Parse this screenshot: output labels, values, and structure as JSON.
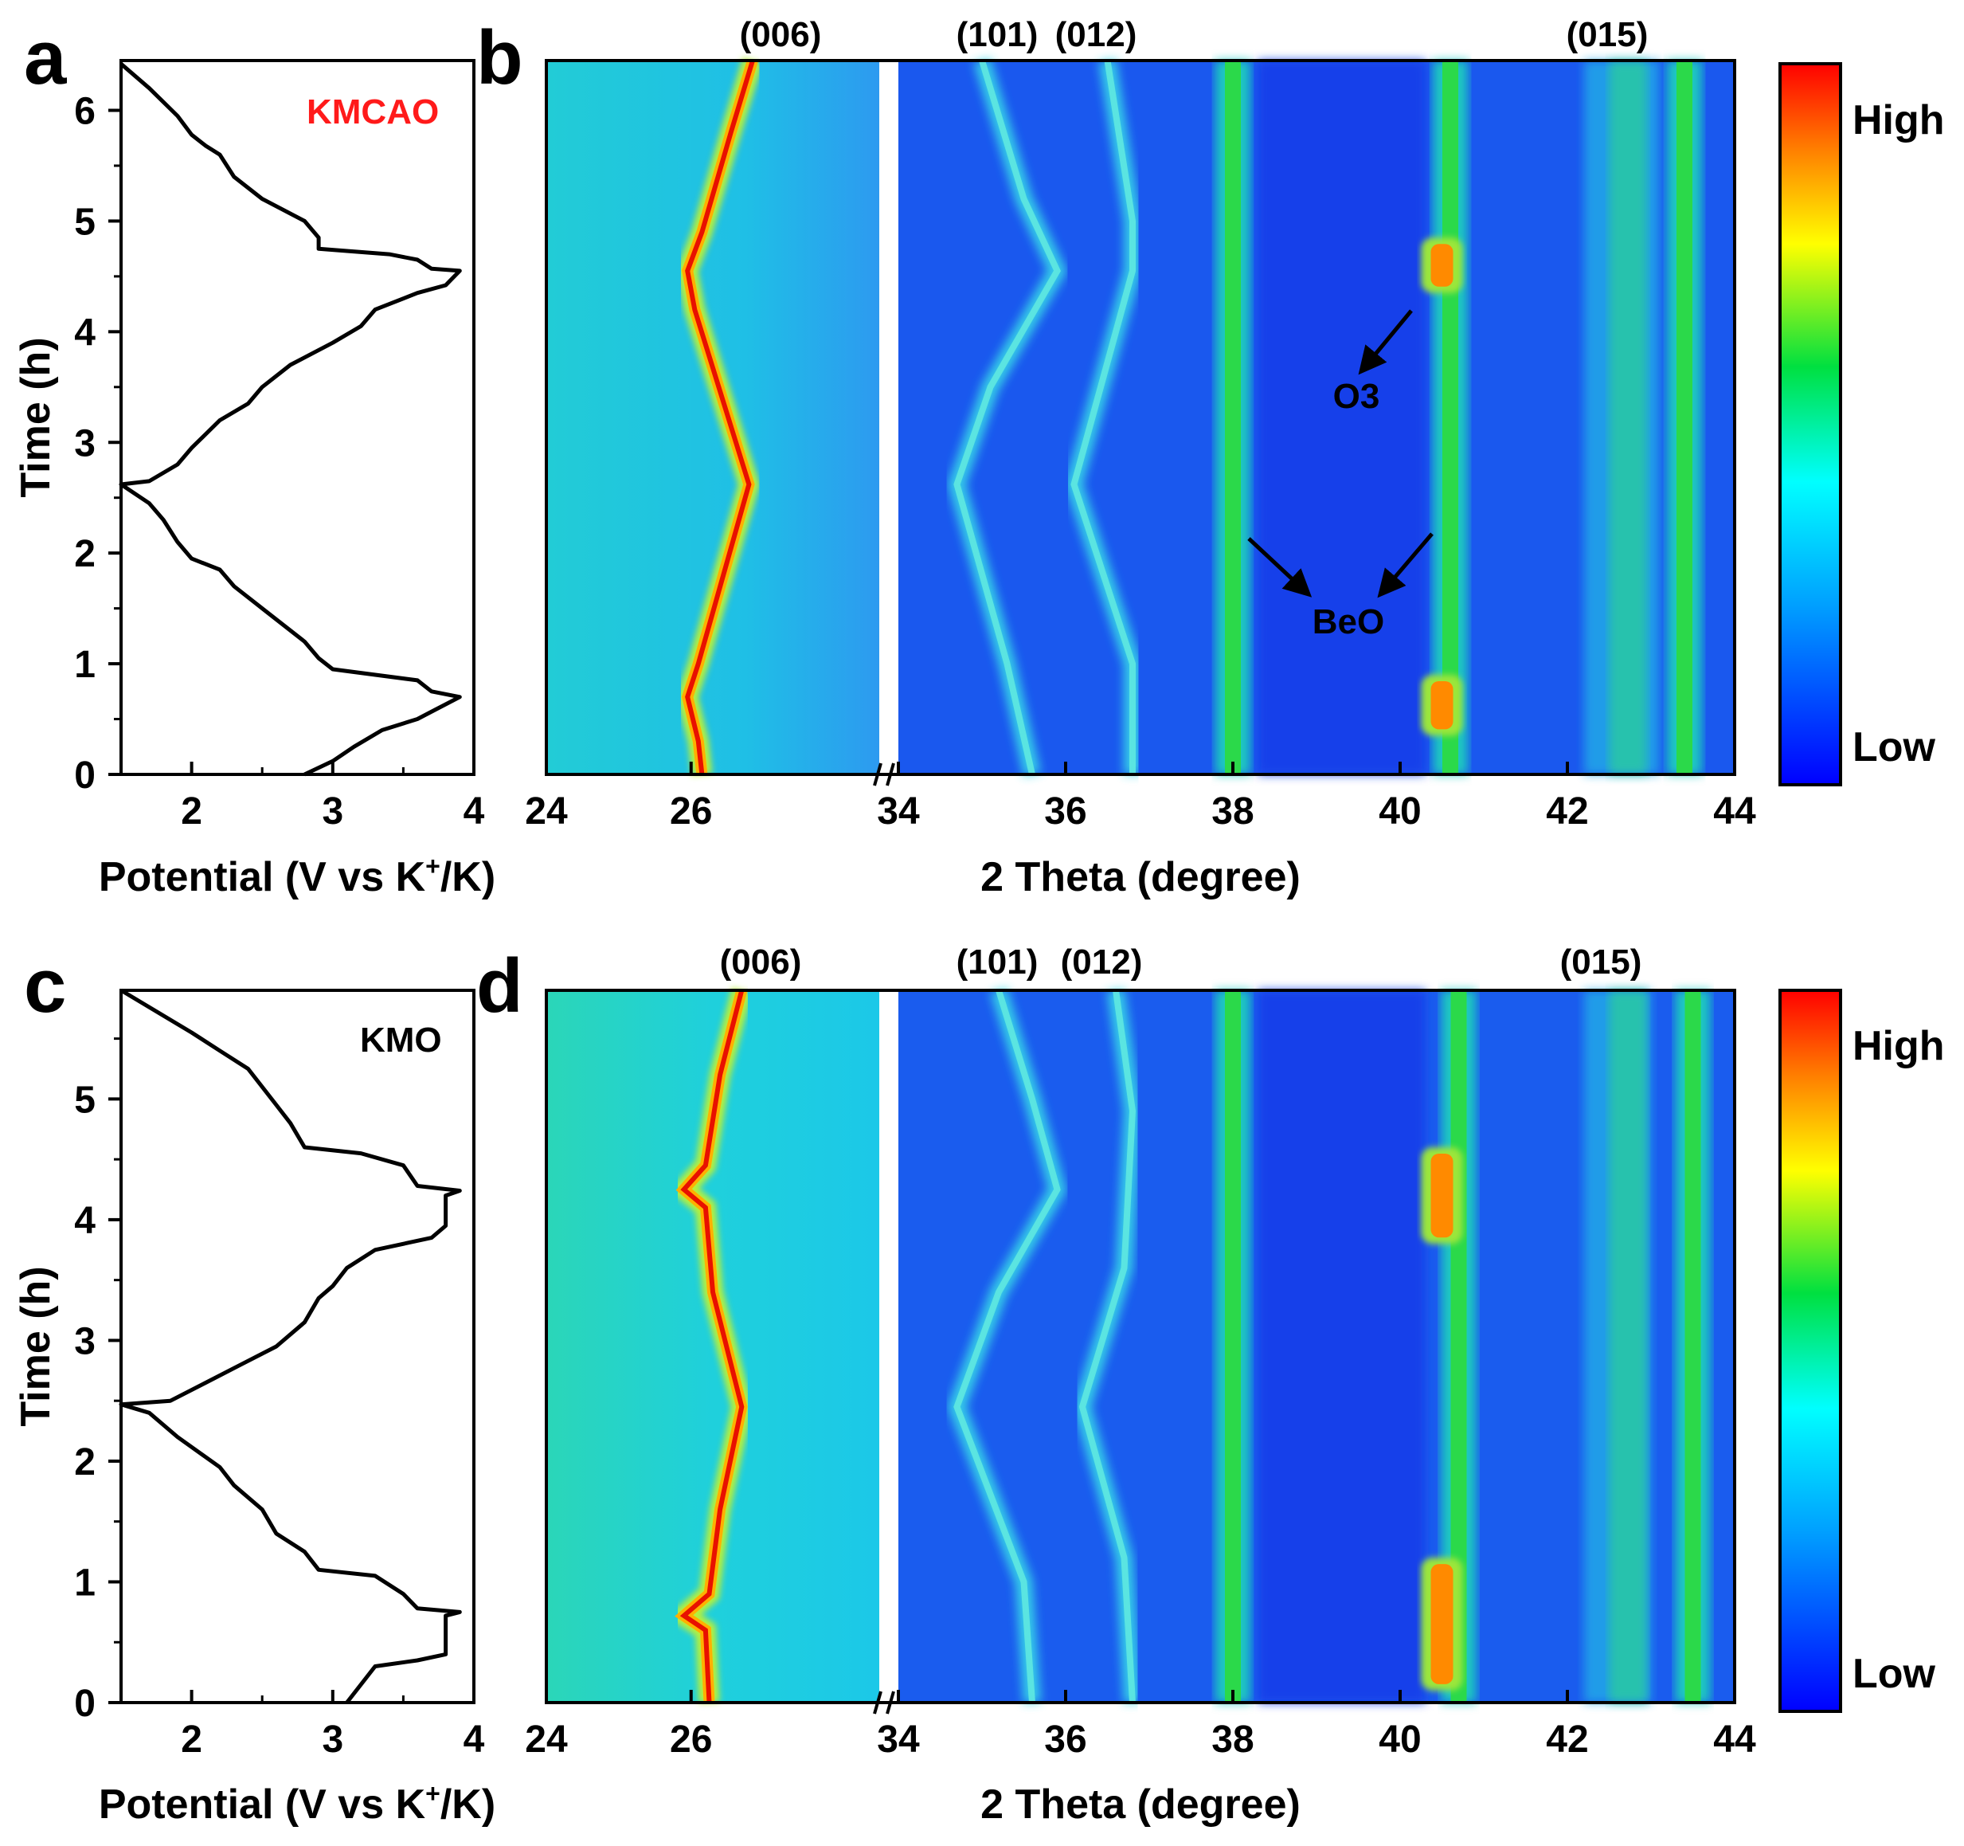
{
  "chart_data": [
    {
      "panel": "a",
      "type": "line",
      "title": "",
      "inset_label": "KMCAO",
      "inset_label_color": "#ff0000",
      "xlabel": "Potential (V vs K",
      "xlabel_sup": "+",
      "xlabel_tail": "/K)",
      "ylabel": "Time (h)",
      "xlim": [
        1.5,
        4.0
      ],
      "ylim": [
        0,
        6.45
      ],
      "xticks": [
        "2",
        "3",
        "4"
      ],
      "yticks": [
        "0",
        "1",
        "2",
        "3",
        "4",
        "5",
        "6"
      ],
      "series": [
        {
          "name": "charge-discharge profile",
          "color": "#000000",
          "points": [
            [
              2.8,
              0
            ],
            [
              3.0,
              0.12
            ],
            [
              3.15,
              0.25
            ],
            [
              3.35,
              0.4
            ],
            [
              3.6,
              0.5
            ],
            [
              3.72,
              0.58
            ],
            [
              3.9,
              0.7
            ],
            [
              3.7,
              0.75
            ],
            [
              3.6,
              0.85
            ],
            [
              3.0,
              0.95
            ],
            [
              2.9,
              1.05
            ],
            [
              2.8,
              1.2
            ],
            [
              2.5,
              1.5
            ],
            [
              2.3,
              1.7
            ],
            [
              2.2,
              1.85
            ],
            [
              2.0,
              1.95
            ],
            [
              1.9,
              2.1
            ],
            [
              1.8,
              2.3
            ],
            [
              1.7,
              2.45
            ],
            [
              1.5,
              2.62
            ],
            [
              1.7,
              2.65
            ],
            [
              1.9,
              2.8
            ],
            [
              2.0,
              2.95
            ],
            [
              2.2,
              3.2
            ],
            [
              2.4,
              3.35
            ],
            [
              2.5,
              3.5
            ],
            [
              2.7,
              3.7
            ],
            [
              3.0,
              3.9
            ],
            [
              3.2,
              4.05
            ],
            [
              3.3,
              4.2
            ],
            [
              3.6,
              4.35
            ],
            [
              3.8,
              4.42
            ],
            [
              3.9,
              4.55
            ],
            [
              3.7,
              4.57
            ],
            [
              3.6,
              4.65
            ],
            [
              3.4,
              4.7
            ],
            [
              2.9,
              4.75
            ],
            [
              2.9,
              4.85
            ],
            [
              2.8,
              5.0
            ],
            [
              2.5,
              5.2
            ],
            [
              2.3,
              5.4
            ],
            [
              2.2,
              5.6
            ],
            [
              2.1,
              5.68
            ],
            [
              2.0,
              5.78
            ],
            [
              1.9,
              5.95
            ],
            [
              1.7,
              6.2
            ],
            [
              1.5,
              6.42
            ]
          ]
        }
      ]
    },
    {
      "panel": "b",
      "type": "heatmap",
      "title": "",
      "xlabel": "2 Theta (degree)",
      "ylabel": "",
      "x_segments": [
        [
          24,
          28.6
        ],
        [
          34,
          44
        ]
      ],
      "xticks": [
        "24",
        "26",
        "34",
        "36",
        "38",
        "40",
        "42",
        "44"
      ],
      "ylim": [
        0,
        6.45
      ],
      "peak_labels": [
        "(006)",
        "(101)",
        "(012)",
        "(015)"
      ],
      "annotations": [
        "O3",
        "BeO"
      ],
      "colorbar": {
        "high": "High",
        "low": "Low"
      },
      "features": {
        "peak_006": [
          [
            26.15,
            0
          ],
          [
            26.1,
            0.3
          ],
          [
            25.95,
            0.7
          ],
          [
            26.1,
            1.0
          ],
          [
            26.8,
            2.62
          ],
          [
            26.05,
            4.2
          ],
          [
            25.95,
            4.55
          ],
          [
            26.15,
            4.9
          ],
          [
            26.55,
            5.8
          ],
          [
            26.85,
            6.45
          ]
        ],
        "peak_101": [
          [
            35.6,
            0
          ],
          [
            35.3,
            1.0
          ],
          [
            34.7,
            2.62
          ],
          [
            35.1,
            3.5
          ],
          [
            35.9,
            4.55
          ],
          [
            35.5,
            5.2
          ],
          [
            35.0,
            6.45
          ]
        ],
        "peak_012": [
          [
            36.8,
            0
          ],
          [
            36.8,
            1.0
          ],
          [
            36.1,
            2.62
          ],
          [
            36.8,
            4.55
          ],
          [
            36.8,
            5.0
          ],
          [
            36.5,
            6.45
          ]
        ],
        "steady_lines": [
          38.0,
          40.6,
          43.4
        ],
        "o3_patches": [
          [
            40.5,
            0.35,
            0.9
          ],
          [
            40.5,
            4.35,
            4.85
          ]
        ],
        "peak_015_band": [
          42.2,
          43.1
        ]
      }
    },
    {
      "panel": "c",
      "type": "line",
      "title": "",
      "inset_label": "KMO",
      "inset_label_color": "#000000",
      "xlabel": "Potential (V vs K",
      "xlabel_sup": "+",
      "xlabel_tail": "/K)",
      "ylabel": "Time (h)",
      "xlim": [
        1.5,
        4.0
      ],
      "ylim": [
        0,
        5.9
      ],
      "xticks": [
        "2",
        "3",
        "4"
      ],
      "yticks": [
        "0",
        "1",
        "2",
        "3",
        "4",
        "5"
      ],
      "series": [
        {
          "name": "charge-discharge profile",
          "color": "#000000",
          "points": [
            [
              3.1,
              0
            ],
            [
              3.3,
              0.3
            ],
            [
              3.6,
              0.35
            ],
            [
              3.8,
              0.4
            ],
            [
              3.8,
              0.72
            ],
            [
              3.9,
              0.75
            ],
            [
              3.6,
              0.78
            ],
            [
              3.5,
              0.9
            ],
            [
              3.3,
              1.05
            ],
            [
              2.9,
              1.1
            ],
            [
              2.8,
              1.25
            ],
            [
              2.6,
              1.4
            ],
            [
              2.5,
              1.6
            ],
            [
              2.3,
              1.8
            ],
            [
              2.2,
              1.95
            ],
            [
              1.9,
              2.2
            ],
            [
              1.7,
              2.4
            ],
            [
              1.5,
              2.47
            ],
            [
              1.85,
              2.5
            ],
            [
              2.1,
              2.65
            ],
            [
              2.35,
              2.8
            ],
            [
              2.6,
              2.95
            ],
            [
              2.8,
              3.15
            ],
            [
              2.9,
              3.35
            ],
            [
              3.0,
              3.45
            ],
            [
              3.1,
              3.6
            ],
            [
              3.3,
              3.75
            ],
            [
              3.7,
              3.85
            ],
            [
              3.8,
              3.95
            ],
            [
              3.8,
              4.2
            ],
            [
              3.9,
              4.24
            ],
            [
              3.6,
              4.28
            ],
            [
              3.5,
              4.45
            ],
            [
              3.2,
              4.55
            ],
            [
              2.8,
              4.6
            ],
            [
              2.7,
              4.8
            ],
            [
              2.6,
              4.95
            ],
            [
              2.4,
              5.25
            ],
            [
              2.2,
              5.4
            ],
            [
              2.0,
              5.55
            ],
            [
              1.5,
              5.9
            ]
          ]
        }
      ]
    },
    {
      "panel": "d",
      "type": "heatmap",
      "title": "",
      "xlabel": "2 Theta (degree)",
      "ylabel": "",
      "x_segments": [
        [
          24,
          28.6
        ],
        [
          34,
          44
        ]
      ],
      "xticks": [
        "24",
        "26",
        "34",
        "36",
        "38",
        "40",
        "42",
        "44"
      ],
      "ylim": [
        0,
        5.9
      ],
      "peak_labels": [
        "(006)",
        "(101)",
        "(012)",
        "(015)"
      ],
      "colorbar": {
        "high": "High",
        "low": "Low"
      },
      "features": {
        "peak_006": [
          [
            26.25,
            0
          ],
          [
            26.2,
            0.6
          ],
          [
            25.9,
            0.72
          ],
          [
            26.25,
            0.9
          ],
          [
            26.4,
            1.6
          ],
          [
            26.7,
            2.45
          ],
          [
            26.3,
            3.4
          ],
          [
            26.2,
            4.1
          ],
          [
            25.9,
            4.25
          ],
          [
            26.2,
            4.45
          ],
          [
            26.4,
            5.2
          ],
          [
            26.7,
            5.9
          ]
        ],
        "peak_101": [
          [
            35.6,
            0
          ],
          [
            35.5,
            1.0
          ],
          [
            34.7,
            2.45
          ],
          [
            35.2,
            3.4
          ],
          [
            35.9,
            4.25
          ],
          [
            35.6,
            5.0
          ],
          [
            35.2,
            5.9
          ]
        ],
        "peak_012": [
          [
            36.8,
            0
          ],
          [
            36.7,
            1.2
          ],
          [
            36.2,
            2.45
          ],
          [
            36.7,
            3.6
          ],
          [
            36.8,
            4.9
          ],
          [
            36.6,
            5.9
          ]
        ],
        "steady_lines": [
          38.0,
          40.7,
          43.5
        ],
        "o3_patches": [
          [
            40.5,
            0.1,
            1.2
          ],
          [
            40.5,
            3.8,
            4.6
          ]
        ],
        "peak_015_band": [
          42.2,
          43.0
        ]
      }
    }
  ],
  "panel_letters": [
    "a",
    "b",
    "c",
    "d"
  ],
  "colors": {
    "jet_low": "#0000ff",
    "jet_high": "#ff0000"
  }
}
